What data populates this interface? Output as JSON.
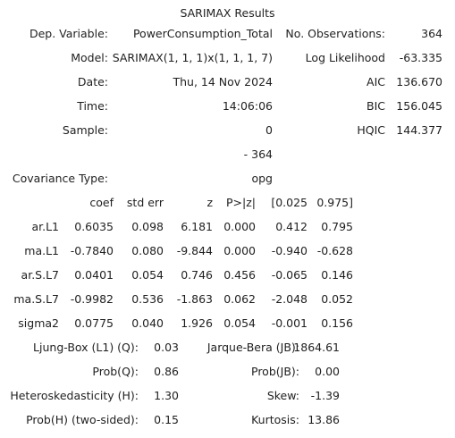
{
  "title": "SARIMAX Results",
  "header": {
    "dep_variable_label": "Dep. Variable:",
    "dep_variable_value": "PowerConsumption_Total",
    "model_label": "Model:",
    "model_value": "SARIMAX(1, 1, 1)x(1, 1, 1, 7)",
    "date_label": "Date:",
    "date_value": "Thu, 14 Nov 2024",
    "time_label": "Time:",
    "time_value": "14:06:06",
    "sample_label": "Sample:",
    "sample_start": "0",
    "sample_end": "- 364",
    "covariance_label": "Covariance Type:",
    "covariance_value": "opg",
    "nobs_label": "No. Observations:",
    "nobs_value": "364",
    "loglik_label": "Log Likelihood",
    "loglik_value": "-63.335",
    "aic_label": "AIC",
    "aic_value": "136.670",
    "bic_label": "BIC",
    "bic_value": "156.045",
    "hqic_label": "HQIC",
    "hqic_value": "144.377"
  },
  "coef_table": {
    "headers": [
      "coef",
      "std err",
      "z",
      "P>|z|",
      "[0.025",
      "0.975]"
    ],
    "rows": [
      {
        "name": "ar.L1",
        "values": [
          "0.6035",
          "0.098",
          "6.181",
          "0.000",
          "0.412",
          "0.795"
        ]
      },
      {
        "name": "ma.L1",
        "values": [
          "-0.7840",
          "0.080",
          "-9.844",
          "0.000",
          "-0.940",
          "-0.628"
        ]
      },
      {
        "name": "ar.S.L7",
        "values": [
          "0.0401",
          "0.054",
          "0.746",
          "0.456",
          "-0.065",
          "0.146"
        ]
      },
      {
        "name": "ma.S.L7",
        "values": [
          "-0.9982",
          "0.536",
          "-1.863",
          "0.062",
          "-2.048",
          "0.052"
        ]
      },
      {
        "name": "sigma2",
        "values": [
          "0.0775",
          "0.040",
          "1.926",
          "0.054",
          "-0.001",
          "0.156"
        ]
      }
    ]
  },
  "diagnostics": [
    {
      "label": "Ljung-Box (L1) (Q):",
      "value": "0.03",
      "label2": "Jarque-Bera (JB):",
      "value2": "1864.61"
    },
    {
      "label": "Prob(Q):",
      "value": "0.86",
      "label2": "Prob(JB):",
      "value2": "0.00"
    },
    {
      "label": "Heteroskedasticity (H):",
      "value": "1.30",
      "label2": "Skew:",
      "value2": "-1.39"
    },
    {
      "label": "Prob(H) (two-sided):",
      "value": "0.15",
      "label2": "Kurtosis:",
      "value2": "13.86"
    }
  ]
}
